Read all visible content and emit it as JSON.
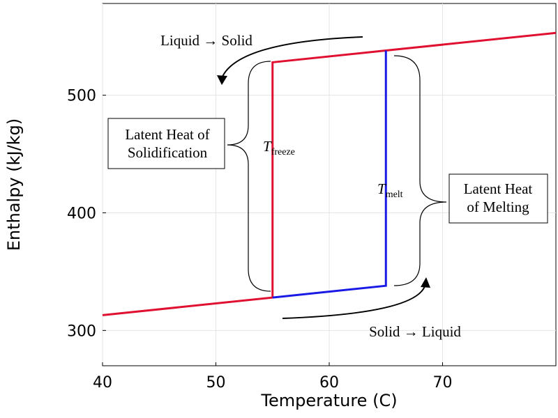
{
  "chart_data": {
    "type": "line",
    "x_label": "Temperature (C)",
    "y_label": "Enthalpy (kJ/kg)",
    "xlim": [
      40,
      80
    ],
    "ylim": [
      270,
      578
    ],
    "xticks": [
      40,
      50,
      60,
      70
    ],
    "yticks": [
      300,
      400,
      500
    ],
    "grid": true,
    "series": [
      {
        "color": "#e01030",
        "x": [
          40,
          55,
          55,
          65,
          80
        ],
        "values": [
          313,
          328,
          528,
          538,
          553
        ]
      },
      {
        "color": "#1a1ae6",
        "x": [
          55,
          65,
          65
        ],
        "values": [
          328,
          338,
          538
        ]
      }
    ],
    "annotations": [
      {
        "text": "Liquid → Solid"
      },
      {
        "text": "Solid → Liquid"
      },
      {
        "lines": [
          "Latent Heat of",
          "Solidification"
        ]
      },
      {
        "lines": [
          "Latent Heat",
          "of Melting"
        ]
      },
      {
        "text": "T",
        "sub": "freeze"
      },
      {
        "text": "T",
        "sub": "melt"
      }
    ]
  }
}
